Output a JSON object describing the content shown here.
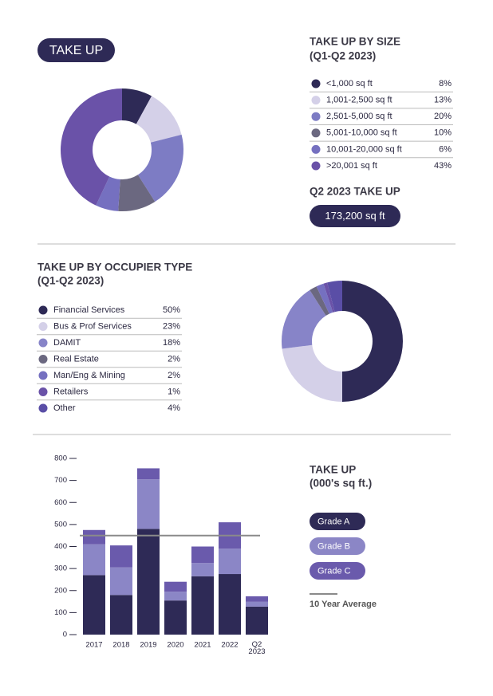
{
  "badge": "TAKE UP",
  "q2_take_up": {
    "title": "Q2 2023 TAKE UP",
    "value": "173,200 sq ft"
  },
  "chart_data": [
    {
      "type": "donut",
      "title": "TAKE UP BY SIZE",
      "subtitle": "(Q1-Q2 2023)",
      "categories": [
        "<1,000 sq ft",
        "1,001-2,500 sq ft",
        "2,501-5,000 sq ft",
        "5,001-10,000 sq ft",
        "10,001-20,000 sq ft",
        ">20,001 sq ft"
      ],
      "values": [
        8,
        13,
        20,
        10,
        6,
        43
      ],
      "value_labels": [
        "8%",
        "13%",
        "20%",
        "10%",
        "6%",
        "43%"
      ],
      "colors": [
        "#2e2a56",
        "#d4d0e8",
        "#7d7cc4",
        "#6b6880",
        "#7570c0",
        "#6a52a8"
      ]
    },
    {
      "type": "donut",
      "title": "TAKE UP BY OCCUPIER TYPE",
      "subtitle": "(Q1-Q2 2023)",
      "categories": [
        "Financial Services",
        "Bus & Prof Services",
        "DAMIT",
        "Real Estate",
        "Man/Eng & Mining",
        "Retailers",
        "Other"
      ],
      "values": [
        50,
        23,
        18,
        2,
        2,
        1,
        4
      ],
      "value_labels": [
        "50%",
        "23%",
        "18%",
        "2%",
        "2%",
        "1%",
        "4%"
      ],
      "colors": [
        "#2e2a56",
        "#d4d0e8",
        "#8784c8",
        "#6b6880",
        "#7570c0",
        "#6a52a8",
        "#5a4ea6"
      ]
    },
    {
      "type": "bar",
      "title": "TAKE UP",
      "subtitle": "(000's sq ft.)",
      "categories": [
        "2017",
        "2018",
        "2019",
        "2020",
        "2021",
        "2022",
        "Q2 2023"
      ],
      "series": [
        {
          "name": "Grade A",
          "color": "#2e2a56",
          "values": [
            270,
            180,
            480,
            155,
            265,
            275,
            127
          ]
        },
        {
          "name": "Grade B",
          "color": "#8b86c6",
          "values": [
            140,
            125,
            225,
            40,
            60,
            115,
            22
          ]
        },
        {
          "name": "Grade C",
          "color": "#6a5aac",
          "values": [
            65,
            100,
            50,
            45,
            75,
            120,
            25
          ]
        }
      ],
      "average": {
        "name": "10 Year Average",
        "value": 450,
        "color": "#8a8a8a"
      },
      "ylim": [
        0,
        800
      ],
      "yticks": [
        0,
        100,
        200,
        300,
        400,
        500,
        600,
        700,
        800
      ]
    }
  ]
}
